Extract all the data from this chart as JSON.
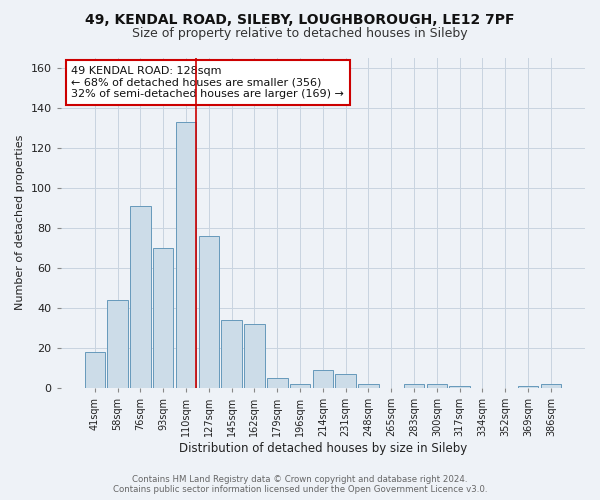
{
  "title": "49, KENDAL ROAD, SILEBY, LOUGHBOROUGH, LE12 7PF",
  "subtitle": "Size of property relative to detached houses in Sileby",
  "xlabel": "Distribution of detached houses by size in Sileby",
  "ylabel": "Number of detached properties",
  "footer_line1": "Contains HM Land Registry data © Crown copyright and database right 2024.",
  "footer_line2": "Contains public sector information licensed under the Open Government Licence v3.0.",
  "categories": [
    "41sqm",
    "58sqm",
    "76sqm",
    "93sqm",
    "110sqm",
    "127sqm",
    "145sqm",
    "162sqm",
    "179sqm",
    "196sqm",
    "214sqm",
    "231sqm",
    "248sqm",
    "265sqm",
    "283sqm",
    "300sqm",
    "317sqm",
    "334sqm",
    "352sqm",
    "369sqm",
    "386sqm"
  ],
  "values": [
    18,
    44,
    91,
    70,
    133,
    76,
    34,
    32,
    5,
    2,
    9,
    7,
    2,
    0,
    2,
    2,
    1,
    0,
    0,
    1,
    2
  ],
  "bar_color": "#ccdce8",
  "bar_edge_color": "#6699bb",
  "highlight_index": 4,
  "highlight_line_color": "#cc0000",
  "annotation_line1": "49 KENDAL ROAD: 128sqm",
  "annotation_line2": "← 68% of detached houses are smaller (356)",
  "annotation_line3": "32% of semi-detached houses are larger (169) →",
  "annotation_box_color": "#ffffff",
  "annotation_border_color": "#cc0000",
  "ylim": [
    0,
    165
  ],
  "yticks": [
    0,
    20,
    40,
    60,
    80,
    100,
    120,
    140,
    160
  ],
  "grid_color": "#c8d4e0",
  "bg_color": "#eef2f7",
  "title_fontsize": 10,
  "subtitle_fontsize": 9,
  "annotation_fontsize": 8
}
